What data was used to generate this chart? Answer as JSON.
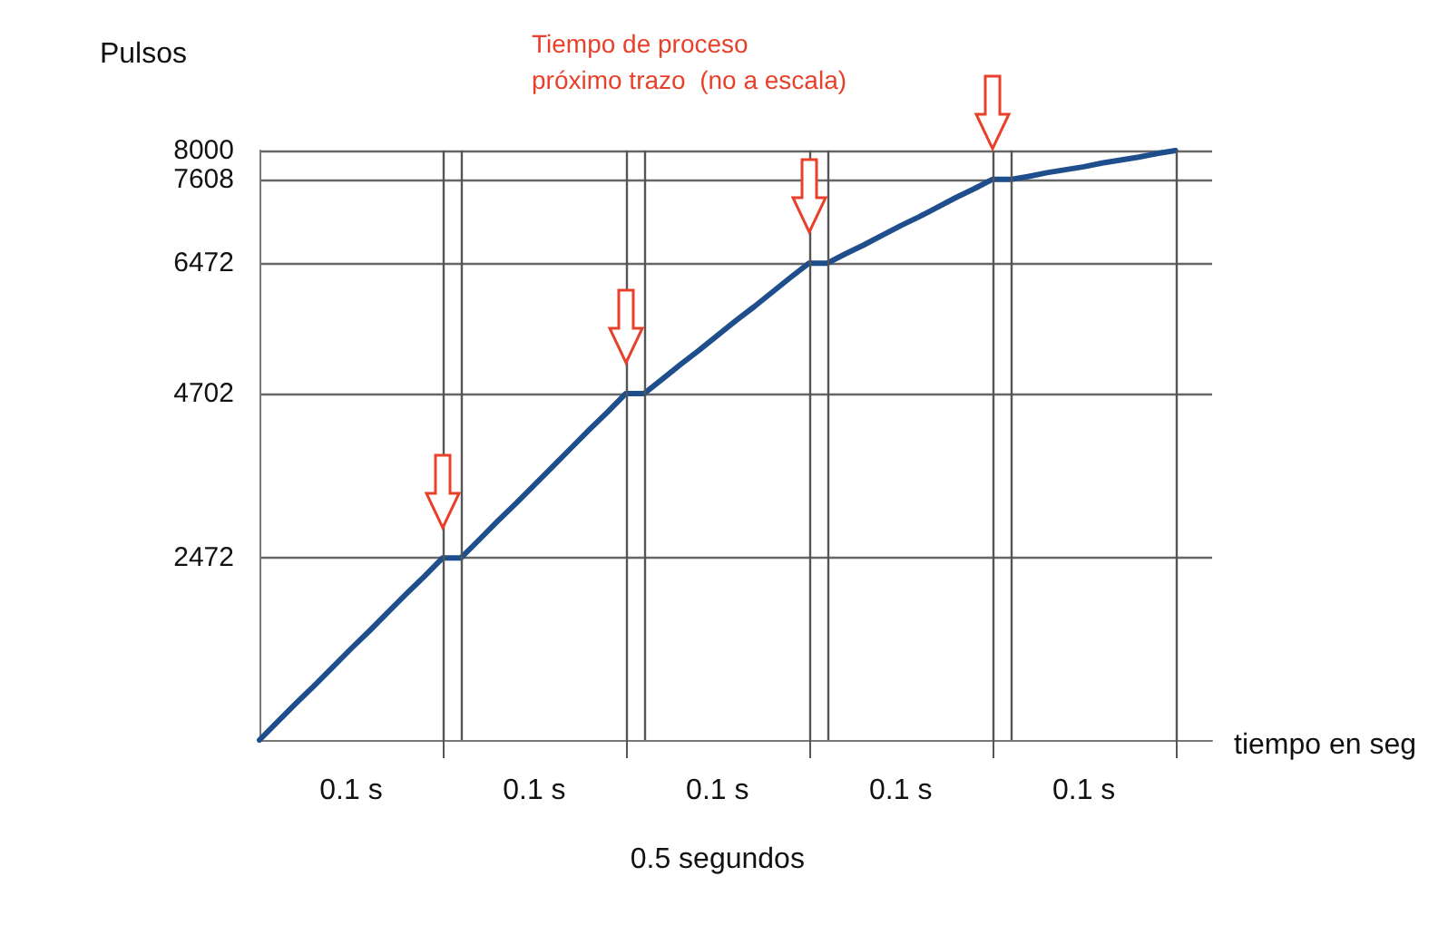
{
  "chart_data": {
    "type": "line",
    "ylabel": "Pulsos",
    "xlabel": "tiempo en seg",
    "categories": [
      null,
      null,
      null,
      null,
      null,
      null,
      null,
      null,
      null,
      null,
      null,
      null,
      null,
      null,
      null,
      null,
      null,
      null,
      null,
      null,
      null,
      null,
      null,
      null,
      null,
      null,
      null,
      null,
      null,
      null,
      null,
      null,
      null,
      null,
      null,
      null,
      null,
      null,
      null,
      null,
      null,
      null,
      null,
      null,
      null,
      null,
      null,
      null,
      null,
      null,
      null,
      null,
      null
    ],
    "series": [
      {
        "color": "#1f4e8c",
        "values": [
          0,
          250,
          500,
          740,
          990,
          1240,
          1480,
          1730,
          1980,
          2220,
          2472,
          2472,
          2720,
          2970,
          3210,
          3460,
          3710,
          3960,
          4210,
          4450,
          4702,
          4702,
          4900,
          5100,
          5290,
          5490,
          5690,
          5880,
          6080,
          6280,
          6472,
          6472,
          6600,
          6720,
          6850,
          6980,
          7100,
          7230,
          7360,
          7480,
          7608,
          7608,
          7650,
          7700,
          7740,
          7780,
          7830,
          7870,
          7910,
          7960,
          8000,
          null,
          null
        ]
      }
    ],
    "ylim": [
      0,
      8000
    ],
    "yticks": [
      2472,
      4702,
      6472,
      7608,
      8000
    ],
    "grid": true,
    "marker": "none",
    "line_style": "solid",
    "annotations": [
      "Tiempo de proceso\npróximo trazo  (no a escala)",
      "0.1 s",
      "0.1 s",
      "0.1 s",
      "0.1 s",
      "0.1 s",
      "0.5 segundos"
    ]
  }
}
